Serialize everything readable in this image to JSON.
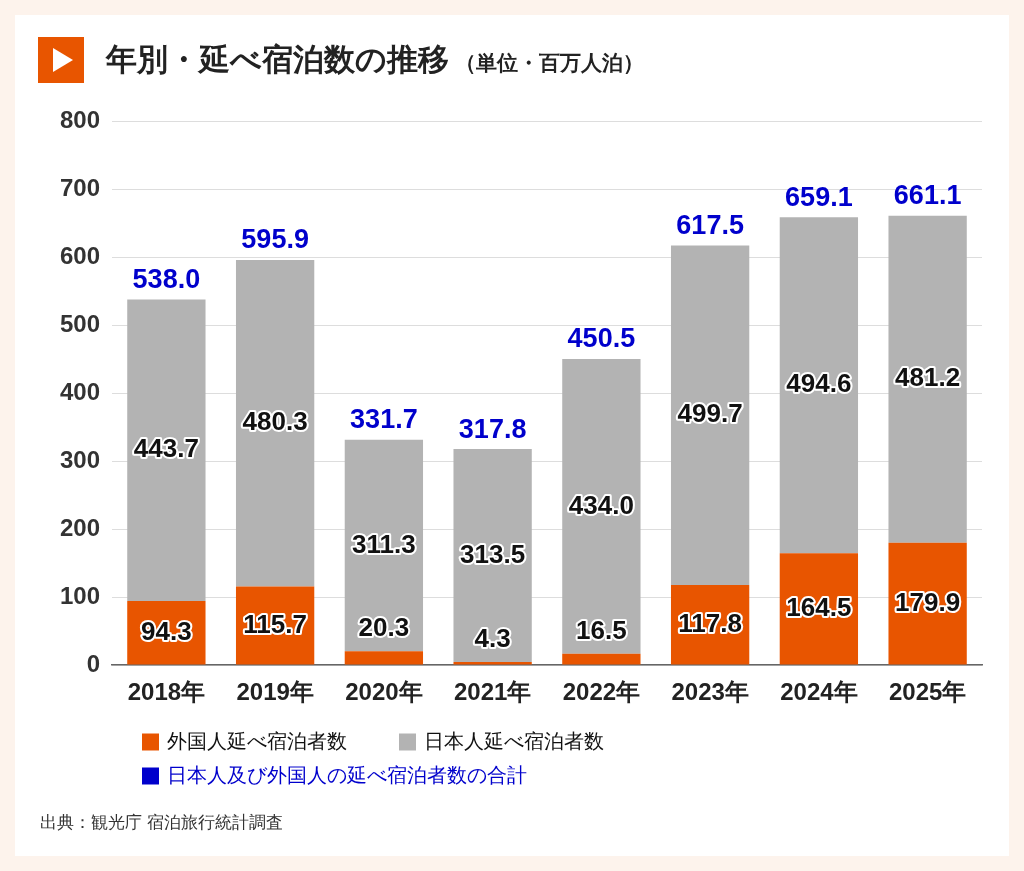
{
  "chart_data": {
    "type": "bar",
    "title": "年別・延べ宿泊数の推移",
    "subtitle": "（単位・百万人泊）",
    "categories": [
      "2018年",
      "2019年",
      "2020年",
      "2021年",
      "2022年",
      "2023年",
      "2024年",
      "2025年"
    ],
    "series": [
      {
        "name": "外国人延べ宿泊者数",
        "color": "#e85500",
        "values": [
          94.3,
          115.7,
          20.3,
          4.3,
          16.5,
          117.8,
          164.5,
          179.9
        ],
        "value_labels": [
          "94.3",
          "115.7",
          "20.3",
          "4.3",
          "16.5",
          "117.8",
          "164.5",
          "179.9"
        ]
      },
      {
        "name": "日本人延べ宿泊者数",
        "color": "#b3b3b3",
        "values": [
          443.7,
          480.3,
          311.3,
          313.5,
          434.0,
          499.7,
          494.6,
          481.2
        ],
        "value_labels": [
          "443.7",
          "480.3",
          "311.3",
          "313.5",
          "434.0",
          "499.7",
          "494.6",
          "481.2"
        ]
      },
      {
        "name": "日本人及び外国人の延べ宿泊者数の合計",
        "color": "#0000cc",
        "values": [
          null,
          null,
          null,
          null,
          null,
          null,
          null,
          null
        ]
      }
    ],
    "stacked": true,
    "totals": [
      "538.0",
      "595.9",
      "331.7",
      "317.8",
      "450.5",
      "617.5",
      "659.1",
      "661.1"
    ],
    "ylim": [
      0,
      800
    ],
    "yticks": [
      0,
      100,
      200,
      300,
      400,
      500,
      600,
      700,
      800
    ],
    "grid": "y",
    "legend": "bottom",
    "annotations": [
      "出典：観光庁 宿泊旅行統計調査"
    ]
  }
}
